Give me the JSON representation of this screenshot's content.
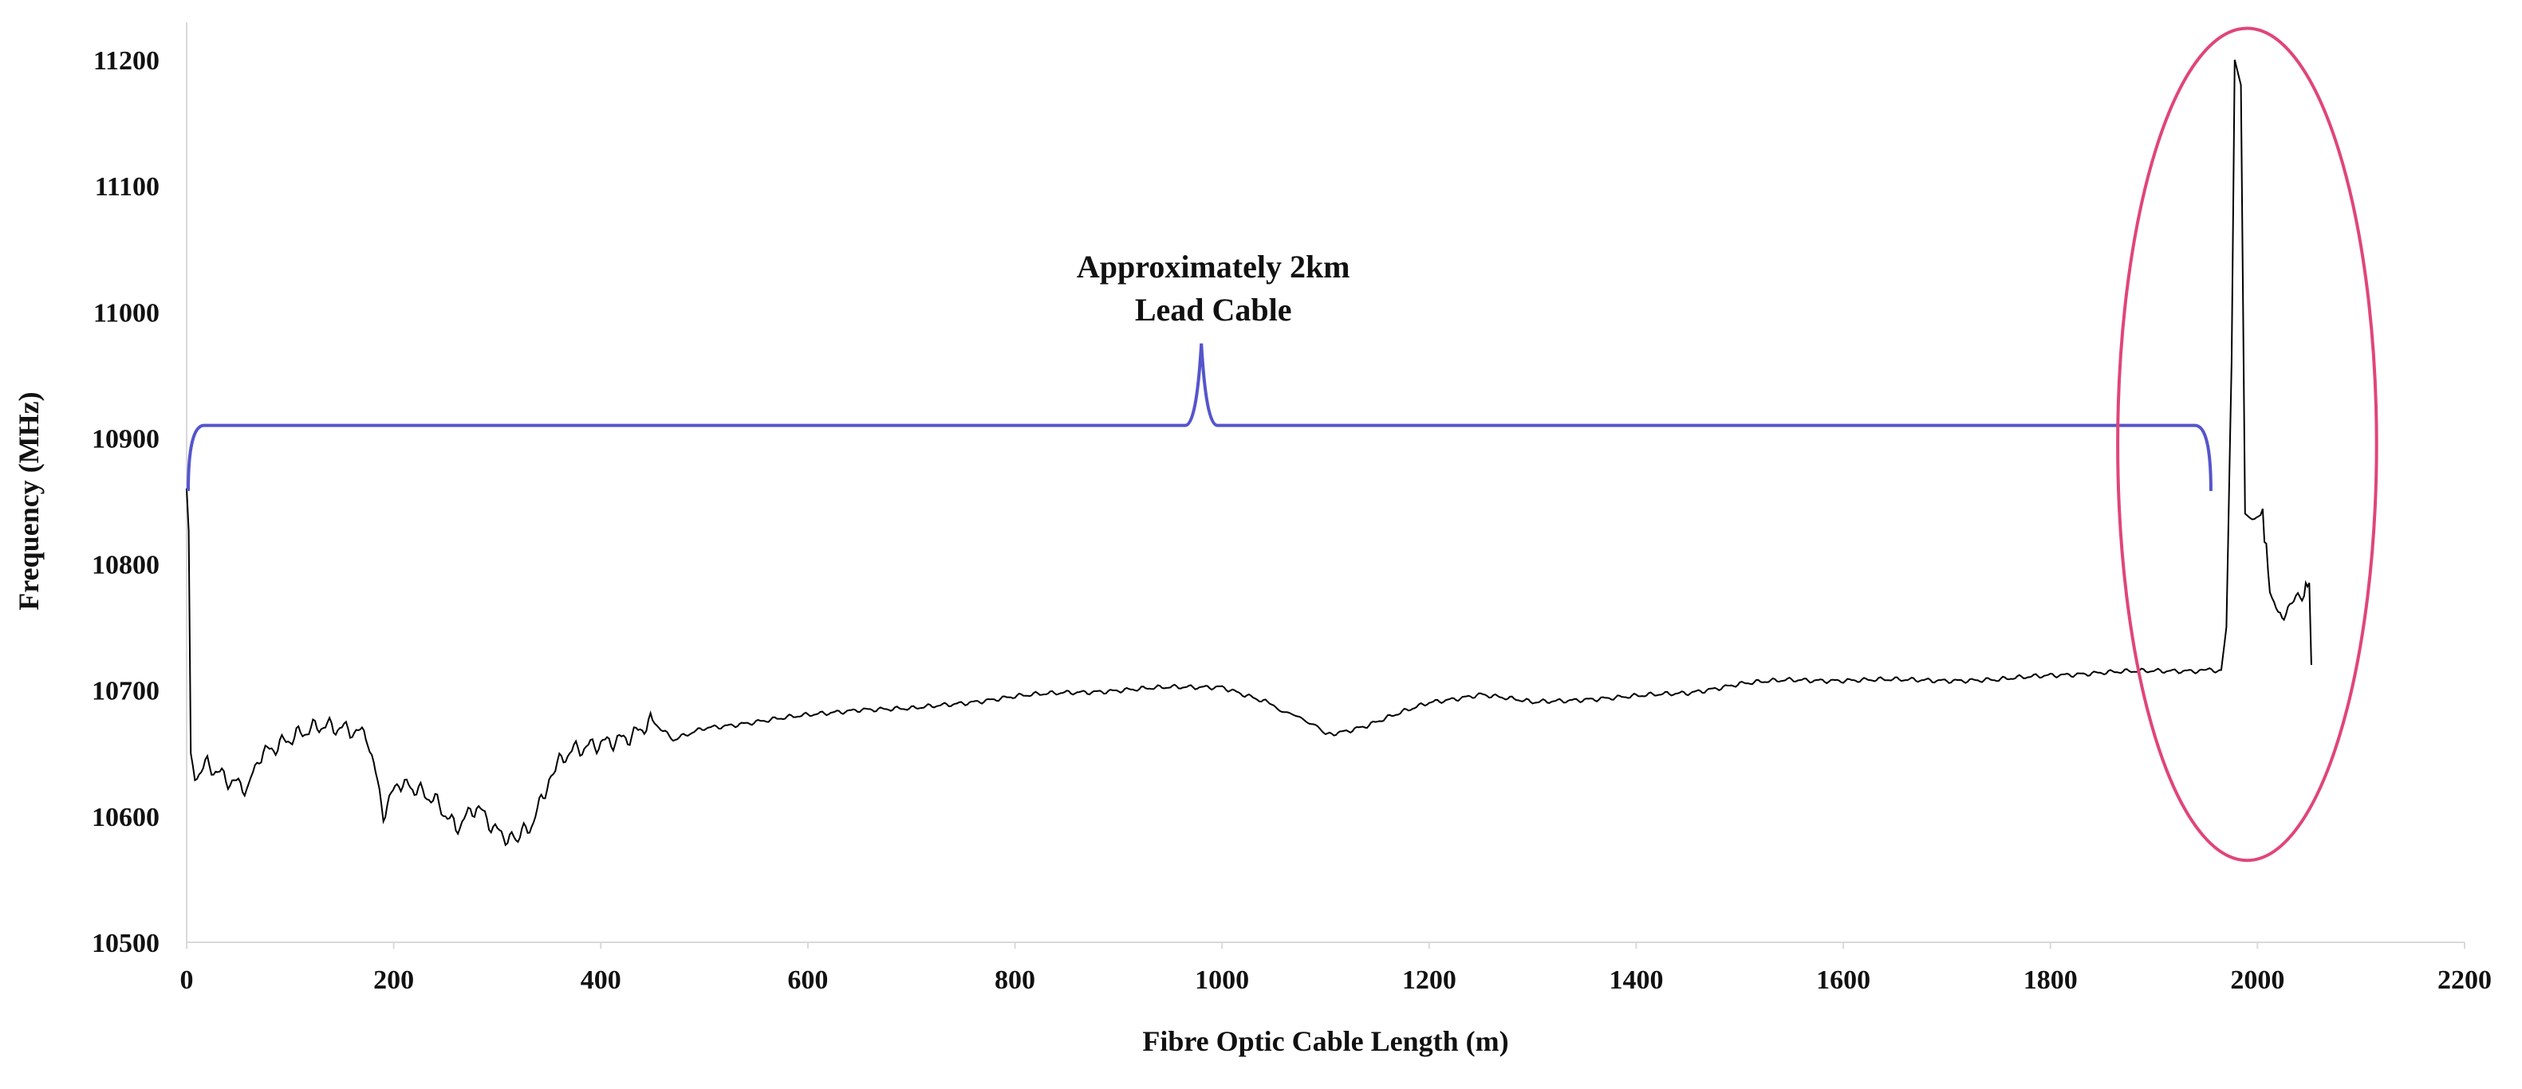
{
  "chart_data": {
    "type": "line",
    "title": "",
    "xlabel": "Fibre Optic Cable Length (m)",
    "ylabel": "Frequency (MHz)",
    "xlim": [
      0,
      2200
    ],
    "ylim": [
      10500,
      11200
    ],
    "x_ticks": [
      0,
      200,
      400,
      600,
      800,
      1000,
      1200,
      1400,
      1600,
      1800,
      2000,
      2200
    ],
    "y_ticks": [
      10500,
      10600,
      10700,
      10800,
      10900,
      11000,
      11100,
      11200
    ],
    "grid": false,
    "legend": "none",
    "series": [
      {
        "color": "#000000",
        "points": [
          [
            0,
            10860
          ],
          [
            2,
            10820
          ],
          [
            4,
            10640
          ],
          [
            8,
            10630
          ],
          [
            20,
            10640
          ],
          [
            40,
            10630
          ],
          [
            60,
            10625
          ],
          [
            70,
            10650
          ],
          [
            100,
            10660
          ],
          [
            130,
            10670
          ],
          [
            160,
            10670
          ],
          [
            175,
            10665
          ],
          [
            190,
            10605
          ],
          [
            205,
            10630
          ],
          [
            220,
            10620
          ],
          [
            240,
            10610
          ],
          [
            260,
            10590
          ],
          [
            280,
            10610
          ],
          [
            300,
            10590
          ],
          [
            320,
            10580
          ],
          [
            335,
            10595
          ],
          [
            350,
            10630
          ],
          [
            370,
            10650
          ],
          [
            400,
            10660
          ],
          [
            430,
            10665
          ],
          [
            450,
            10675
          ],
          [
            470,
            10660
          ],
          [
            500,
            10670
          ],
          [
            550,
            10675
          ],
          [
            600,
            10680
          ],
          [
            650,
            10685
          ],
          [
            700,
            10685
          ],
          [
            750,
            10690
          ],
          [
            800,
            10695
          ],
          [
            850,
            10698
          ],
          [
            900,
            10700
          ],
          [
            950,
            10702
          ],
          [
            1000,
            10703
          ],
          [
            1020,
            10697
          ],
          [
            1050,
            10688
          ],
          [
            1075,
            10678
          ],
          [
            1100,
            10665
          ],
          [
            1120,
            10668
          ],
          [
            1140,
            10672
          ],
          [
            1160,
            10678
          ],
          [
            1200,
            10690
          ],
          [
            1250,
            10697
          ],
          [
            1300,
            10690
          ],
          [
            1350,
            10693
          ],
          [
            1400,
            10695
          ],
          [
            1450,
            10698
          ],
          [
            1500,
            10705
          ],
          [
            1550,
            10708
          ],
          [
            1600,
            10708
          ],
          [
            1650,
            10708
          ],
          [
            1700,
            10708
          ],
          [
            1750,
            10708
          ],
          [
            1800,
            10712
          ],
          [
            1850,
            10714
          ],
          [
            1900,
            10715
          ],
          [
            1950,
            10716
          ],
          [
            1965,
            10716
          ],
          [
            1970,
            10750
          ],
          [
            1975,
            10960
          ],
          [
            1978,
            11200
          ],
          [
            1984,
            11180
          ],
          [
            1988,
            10840
          ],
          [
            1995,
            10835
          ],
          [
            2005,
            10840
          ],
          [
            2012,
            10780
          ],
          [
            2020,
            10760
          ],
          [
            2035,
            10770
          ],
          [
            2045,
            10780
          ],
          [
            2050,
            10785
          ],
          [
            2052,
            10720
          ]
        ]
      }
    ],
    "annotations": [
      {
        "text_lines": [
          "Approximately  2km",
          "Lead Cable"
        ],
        "bracket_color": "#5555cc",
        "bracket_x": [
          0,
          1955
        ],
        "bracket_y": 10910,
        "peak_x": 980,
        "peak_y": 10975,
        "end_y": 10858
      },
      {
        "shape": "ellipse",
        "color": "#e0457a",
        "cx": 1990,
        "cy": 10895,
        "rx_data": 125,
        "ry_data": 330
      }
    ]
  }
}
